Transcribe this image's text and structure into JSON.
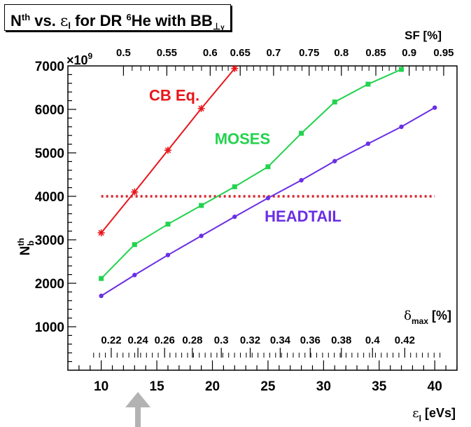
{
  "title": {
    "n": "N",
    "n_sup": "th",
    "mid": " vs. ",
    "eps": "ε",
    "eps_sub": "l",
    "rest": " for DR ",
    "iso_sup": "6",
    "iso": "He with BB",
    "bb_sub_perp": "⊥",
    "bb_sub_y": "y"
  },
  "chart_data": {
    "type": "line",
    "x_axis": {
      "label": "ε",
      "label_sub": "l",
      "label_unit": " [eVs]",
      "range": [
        7,
        42
      ],
      "ticks": [
        10,
        15,
        20,
        25,
        30,
        35,
        40
      ]
    },
    "y_axis": {
      "label_main": "N",
      "label_sup": "th",
      "label_sub": "b",
      "range": [
        0,
        7000
      ],
      "ticks": [
        1000,
        2000,
        3000,
        4000,
        5000,
        6000,
        7000
      ],
      "multiplier": "×10",
      "multiplier_exp": "9"
    },
    "top_axis": {
      "label": "SF [%]",
      "ticks": [
        {
          "label": "0.5",
          "x": 12.0
        },
        {
          "label": "0.55",
          "x": 15.9
        },
        {
          "label": "0.6",
          "x": 19.8
        },
        {
          "label": "0.65",
          "x": 22.5
        },
        {
          "label": "0.7",
          "x": 25.5
        },
        {
          "label": "0.75",
          "x": 28.7
        },
        {
          "label": "0.8",
          "x": 31.6
        },
        {
          "label": "0.85",
          "x": 34.7
        },
        {
          "label": "0.9",
          "x": 37.7
        },
        {
          "label": "0.95",
          "x": 40.8
        }
      ]
    },
    "inner_axis": {
      "label": "δ",
      "label_sub": "max",
      "label_unit": " [%]",
      "ticks": [
        {
          "label": "0.22",
          "x": 10.9
        },
        {
          "label": "0.24",
          "x": 13.3
        },
        {
          "label": "0.26",
          "x": 15.7
        },
        {
          "label": "0.28",
          "x": 18.2
        },
        {
          "label": "0.3",
          "x": 20.8
        },
        {
          "label": "0.32",
          "x": 23.4
        },
        {
          "label": "0.34",
          "x": 26.1
        },
        {
          "label": "0.36",
          "x": 28.8
        },
        {
          "label": "0.38",
          "x": 31.6
        },
        {
          "label": "0.4",
          "x": 34.4
        },
        {
          "label": "0.42",
          "x": 37.3
        }
      ]
    },
    "series": [
      {
        "name": "CB Eq.",
        "color": "#e8161b",
        "marker": "star",
        "x": [
          10,
          13,
          16,
          19,
          22
        ],
        "y": [
          3160,
          4100,
          5060,
          6020,
          6940
        ]
      },
      {
        "name": "MOSES",
        "color": "#22d34e",
        "marker": "square",
        "x": [
          10,
          13,
          16,
          19,
          22,
          25,
          28,
          31,
          34,
          37
        ],
        "y": [
          2110,
          2890,
          3360,
          3790,
          4220,
          4680,
          5450,
          6170,
          6580,
          6920
        ]
      },
      {
        "name": "HEADTAIL",
        "color": "#6a2ee6",
        "marker": "circle",
        "x": [
          10,
          13,
          16,
          19,
          22,
          25,
          28,
          31,
          34,
          37,
          40
        ],
        "y": [
          1710,
          2190,
          2650,
          3090,
          3530,
          3960,
          4370,
          4810,
          5210,
          5600,
          6040
        ]
      }
    ],
    "reference_line": {
      "y": 4000,
      "x_range": [
        10,
        40
      ],
      "color": "#d9222c",
      "style": "dotted"
    },
    "arrow": {
      "x": 13.3,
      "color": "#b3b3b3"
    },
    "grid": false,
    "legend": "none"
  }
}
